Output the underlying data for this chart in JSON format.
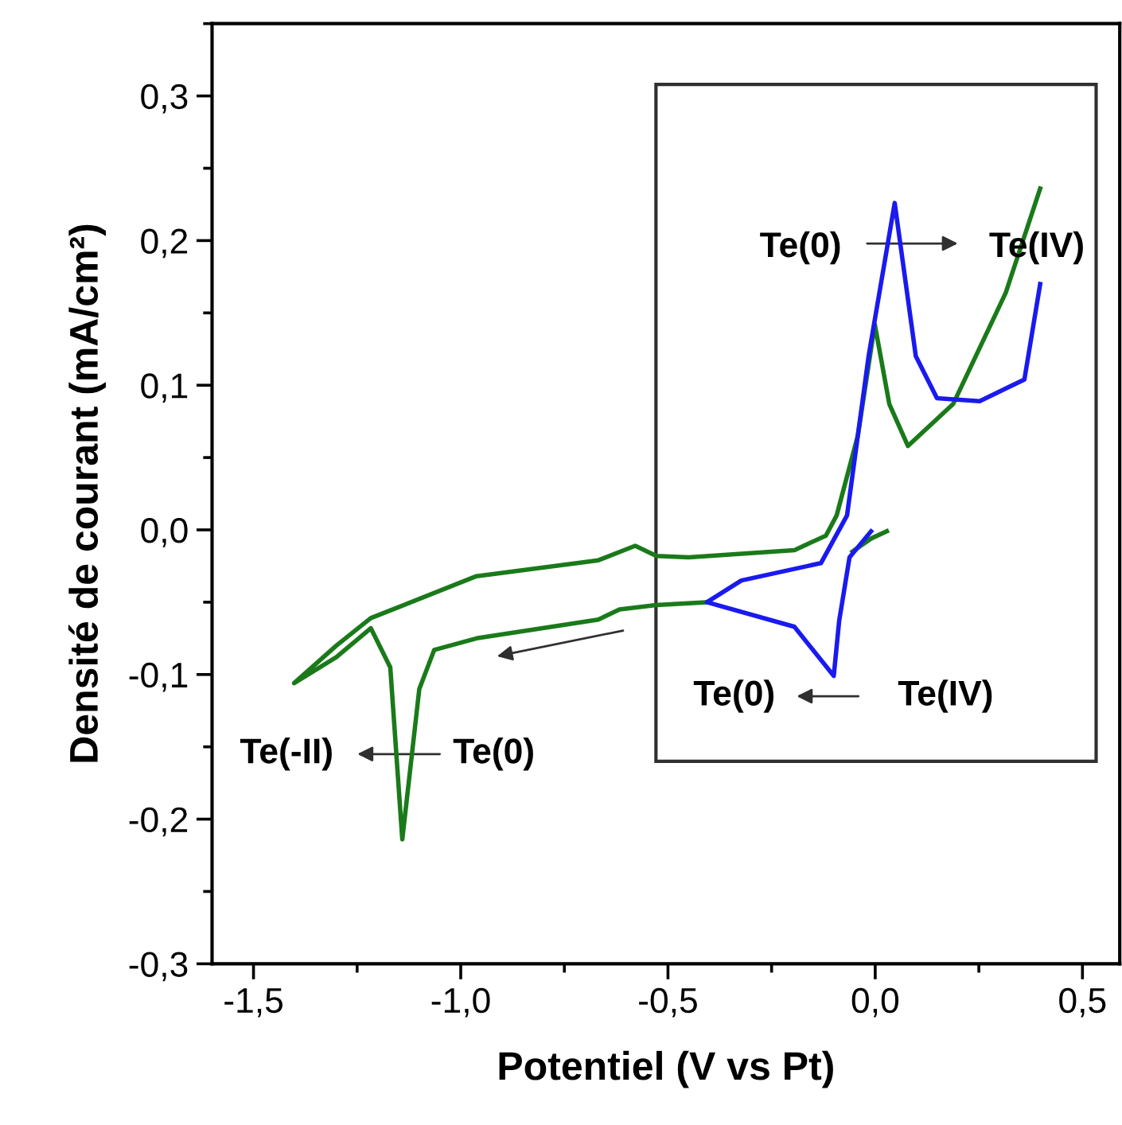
{
  "chart_data": {
    "type": "line",
    "xlabel": "Potentiel (V vs Pt)",
    "ylabel": "Densité de courant (mA/cm²)",
    "xlim": [
      -1.6,
      0.59
    ],
    "ylim": [
      -0.3,
      0.35
    ],
    "xticks": [
      {
        "value": -1.5,
        "label": "-1,5"
      },
      {
        "value": -1.0,
        "label": "-1,0"
      },
      {
        "value": -0.5,
        "label": "-0,5"
      },
      {
        "value": 0.0,
        "label": "0,0"
      },
      {
        "value": 0.5,
        "label": "0,5"
      }
    ],
    "yticks": [
      {
        "value": -0.3,
        "label": "-0,3"
      },
      {
        "value": -0.2,
        "label": "-0,2"
      },
      {
        "value": -0.1,
        "label": "-0,1"
      },
      {
        "value": 0.0,
        "label": "0,0"
      },
      {
        "value": 0.1,
        "label": "0,1"
      },
      {
        "value": 0.2,
        "label": "0,2"
      },
      {
        "value": 0.3,
        "label": "0,3"
      }
    ],
    "grid": false,
    "legend": false,
    "marker": "none",
    "line_style": "solid",
    "series": [
      {
        "color": "#1a7a1a",
        "x": [
          0.028,
          -0.01,
          -0.055,
          -0.087,
          -0.1,
          -0.195,
          -0.406,
          -0.529,
          -0.617,
          -0.668,
          -0.962,
          -1.064,
          -1.1,
          -1.141,
          -1.17,
          -1.217,
          -1.3,
          -1.402,
          -1.3,
          -1.217,
          -0.962,
          -0.668,
          -0.579,
          -0.528,
          -0.45,
          -0.195,
          -0.119,
          -0.093,
          -0.042,
          -0.001,
          0.034,
          0.079,
          0.188,
          0.315,
          0.398
        ],
        "values": [
          -0.001,
          -0.006,
          -0.015,
          null,
          null,
          null,
          -0.05,
          -0.052,
          -0.055,
          -0.062,
          -0.075,
          -0.083,
          -0.11,
          -0.214,
          -0.095,
          -0.068,
          -0.088,
          -0.106,
          -0.08,
          -0.061,
          -0.032,
          -0.021,
          -0.011,
          -0.018,
          -0.019,
          -0.014,
          -0.004,
          0.01,
          0.065,
          0.142,
          0.087,
          0.058,
          0.087,
          0.164,
          0.236
        ]
      },
      {
        "color": "#1a1aee",
        "x": [
          -0.01,
          -0.062,
          -0.087,
          -0.1,
          -0.195,
          -0.406,
          -0.323,
          -0.131,
          -0.068,
          -0.016,
          0.047,
          0.098,
          0.149,
          0.252,
          0.36,
          0.398
        ],
        "values": [
          -0.001,
          -0.019,
          -0.063,
          -0.101,
          -0.067,
          -0.05,
          -0.035,
          -0.023,
          0.01,
          0.12,
          0.226,
          0.12,
          0.091,
          0.089,
          0.104,
          0.17
        ]
      }
    ],
    "annotations": [
      "Te(0)",
      "Te(IV)",
      "Te(0)",
      "Te(IV)",
      "Te(-II)",
      "Te(0)"
    ]
  }
}
